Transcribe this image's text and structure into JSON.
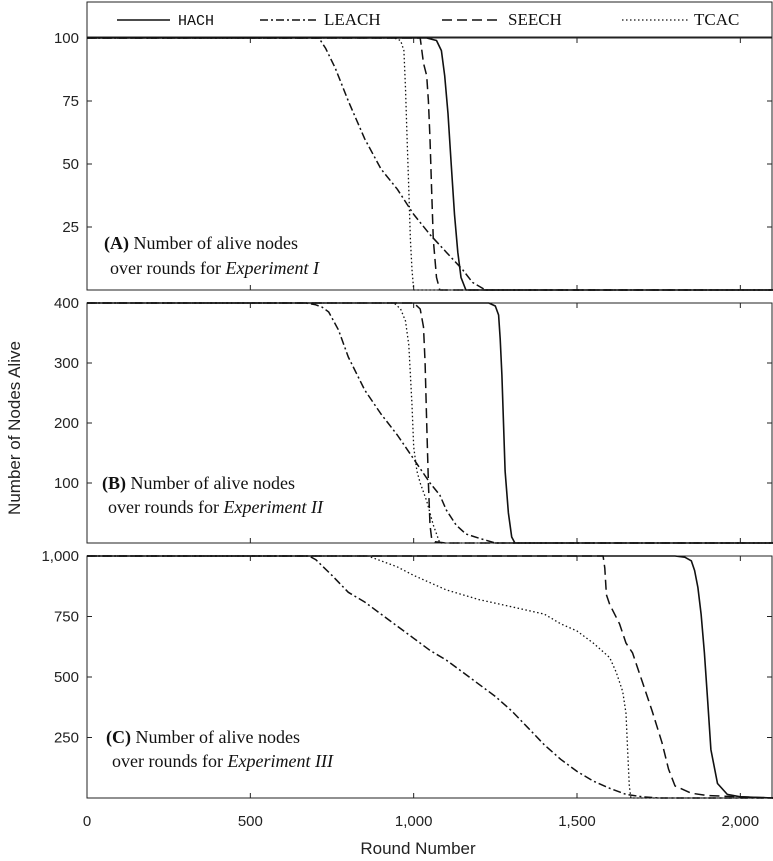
{
  "legend": [
    {
      "name": "HACH",
      "dash": "solid"
    },
    {
      "name": "LEACH",
      "dash": "dashdot"
    },
    {
      "name": "SEECH",
      "dash": "dashed"
    },
    {
      "name": "TCAC",
      "dash": "dotted"
    }
  ],
  "xlabel": "Round Number",
  "ylabel": "Number of Nodes Alive",
  "chart_data": [
    {
      "type": "line",
      "panel": "A",
      "note_bold": "(A)",
      "note_line1": " Number of alive nodes",
      "note_line2_prefix": "over rounds for ",
      "note_line2_italic": "Experiment I",
      "xlim": [
        0,
        2100
      ],
      "ylim": [
        0,
        100
      ],
      "yticks": [
        25,
        50,
        75,
        100
      ],
      "ytick_labels": [
        "25",
        "50",
        "75",
        "100"
      ],
      "series": [
        {
          "name": "HACH",
          "x": [
            0,
            1040,
            1070,
            1085,
            1095,
            1105,
            1115,
            1125,
            1135,
            1145,
            1160,
            1200,
            2100
          ],
          "y": [
            100,
            100,
            99,
            95,
            85,
            70,
            50,
            30,
            15,
            5,
            0,
            0,
            0
          ]
        },
        {
          "name": "LEACH",
          "x": [
            0,
            710,
            730,
            760,
            800,
            850,
            900,
            950,
            1000,
            1050,
            1100,
            1150,
            1180,
            1220,
            2100
          ],
          "y": [
            100,
            100,
            96,
            88,
            75,
            60,
            48,
            40,
            30,
            22,
            15,
            8,
            3,
            0,
            0
          ]
        },
        {
          "name": "SEECH",
          "x": [
            0,
            1020,
            1030,
            1040,
            1045,
            1050,
            1055,
            1060,
            1070,
            1080,
            2100
          ],
          "y": [
            100,
            100,
            90,
            85,
            75,
            60,
            40,
            20,
            5,
            0,
            0
          ]
        },
        {
          "name": "TCAC",
          "x": [
            0,
            940,
            960,
            970,
            975,
            980,
            985,
            990,
            995,
            1000,
            2100
          ],
          "y": [
            100,
            100,
            99,
            95,
            80,
            60,
            40,
            20,
            8,
            0,
            0
          ]
        }
      ]
    },
    {
      "type": "line",
      "panel": "B",
      "note_bold": "(B)",
      "note_line1": " Number of alive nodes",
      "note_line2_prefix": "over rounds for ",
      "note_line2_italic": "Experiment II",
      "xlim": [
        0,
        2100
      ],
      "ylim": [
        0,
        400
      ],
      "yticks": [
        100,
        200,
        300,
        400
      ],
      "ytick_labels": [
        "100",
        "200",
        "300",
        "400"
      ],
      "series": [
        {
          "name": "HACH",
          "x": [
            0,
            1230,
            1250,
            1260,
            1265,
            1270,
            1275,
            1280,
            1290,
            1300,
            1310,
            2100
          ],
          "y": [
            400,
            400,
            395,
            380,
            340,
            280,
            200,
            120,
            50,
            10,
            0,
            0
          ]
        },
        {
          "name": "LEACH",
          "x": [
            0,
            670,
            700,
            720,
            740,
            770,
            800,
            850,
            900,
            950,
            1000,
            1050,
            1080,
            1100,
            1130,
            1160,
            1200,
            1250,
            2100
          ],
          "y": [
            400,
            400,
            397,
            393,
            385,
            355,
            310,
            255,
            215,
            180,
            140,
            100,
            80,
            55,
            30,
            15,
            8,
            0,
            0
          ]
        },
        {
          "name": "SEECH",
          "x": [
            0,
            1000,
            1020,
            1030,
            1035,
            1040,
            1045,
            1050,
            1055,
            1065,
            1100,
            2100
          ],
          "y": [
            400,
            400,
            390,
            360,
            300,
            200,
            100,
            30,
            8,
            2,
            0,
            0
          ]
        },
        {
          "name": "TCAC",
          "x": [
            0,
            940,
            960,
            975,
            985,
            990,
            995,
            1000,
            1010,
            1020,
            1040,
            1060,
            1080,
            2100
          ],
          "y": [
            400,
            400,
            390,
            370,
            330,
            280,
            230,
            160,
            120,
            100,
            70,
            30,
            0,
            0
          ]
        }
      ]
    },
    {
      "type": "line",
      "panel": "C",
      "note_bold": "(C)",
      "note_line1": " Number of alive nodes",
      "note_line2_prefix": "over rounds for ",
      "note_line2_italic": "Experiment III",
      "xlim": [
        0,
        2100
      ],
      "ylim": [
        0,
        1000
      ],
      "yticks": [
        250,
        500,
        750,
        1000
      ],
      "ytick_labels": [
        "250",
        "500",
        "750",
        "1,000"
      ],
      "xticks": [
        0,
        500,
        1000,
        1500,
        2000
      ],
      "xtick_labels": [
        "0",
        "500",
        "1,000",
        "1,500",
        "2,000"
      ],
      "series": [
        {
          "name": "HACH",
          "x": [
            0,
            1800,
            1830,
            1850,
            1860,
            1870,
            1880,
            1890,
            1900,
            1910,
            1930,
            1960,
            2000,
            2100
          ],
          "y": [
            1000,
            1000,
            995,
            980,
            940,
            870,
            760,
            600,
            400,
            200,
            60,
            15,
            5,
            0
          ]
        },
        {
          "name": "LEACH",
          "x": [
            0,
            680,
            700,
            750,
            800,
            850,
            900,
            950,
            1000,
            1050,
            1100,
            1150,
            1200,
            1250,
            1300,
            1350,
            1400,
            1450,
            1500,
            1550,
            1600,
            1650,
            1700,
            1750,
            2100
          ],
          "y": [
            1000,
            1000,
            985,
            920,
            850,
            810,
            760,
            710,
            660,
            610,
            570,
            520,
            470,
            420,
            360,
            290,
            220,
            160,
            110,
            70,
            40,
            15,
            5,
            0,
            0
          ]
        },
        {
          "name": "SEECH",
          "x": [
            0,
            1580,
            1585,
            1590,
            1600,
            1630,
            1650,
            1670,
            1700,
            1730,
            1760,
            1780,
            1800,
            1850,
            1900,
            2000,
            2100
          ],
          "y": [
            1000,
            1000,
            950,
            840,
            800,
            720,
            640,
            600,
            480,
            360,
            230,
            120,
            50,
            20,
            10,
            5,
            0
          ]
        },
        {
          "name": "TCAC",
          "x": [
            0,
            860,
            900,
            950,
            1000,
            1100,
            1200,
            1300,
            1400,
            1450,
            1500,
            1550,
            1600,
            1620,
            1640,
            1650,
            1655,
            1660,
            1665,
            2100
          ],
          "y": [
            1000,
            1000,
            980,
            955,
            920,
            860,
            820,
            790,
            760,
            720,
            690,
            640,
            580,
            520,
            440,
            350,
            200,
            50,
            0,
            0
          ]
        }
      ]
    }
  ]
}
